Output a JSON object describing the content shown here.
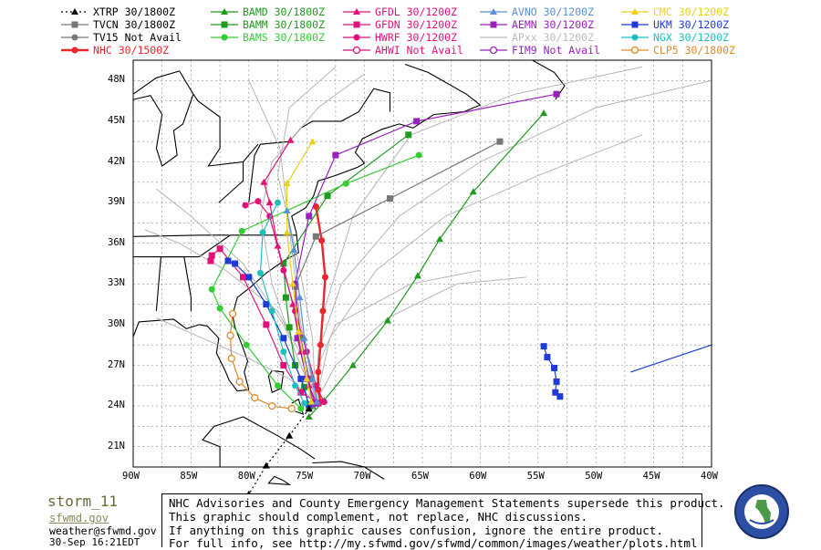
{
  "legend": [
    {
      "label": "XTRP 30/1800Z",
      "color": "#000000",
      "marker": "triangle",
      "dashed": true,
      "col": 0,
      "row": 0
    },
    {
      "label": "TVCN 30/1800Z",
      "color": "#777777",
      "marker": "square",
      "col": 0,
      "row": 1
    },
    {
      "label": "TV15 Not Avail",
      "color": "#777777",
      "marker": "circle",
      "col": 0,
      "row": 2
    },
    {
      "label": "NHC 30/1500Z",
      "color": "#e8262c",
      "marker": "circle",
      "col": 0,
      "row": 3
    },
    {
      "label": "BAMD 30/1800Z",
      "color": "#1e9a1e",
      "marker": "triangle",
      "col": 1,
      "row": 0
    },
    {
      "label": "BAMM 30/1800Z",
      "color": "#1e9a1e",
      "marker": "square",
      "col": 1,
      "row": 1
    },
    {
      "label": "BAMS 30/1800Z",
      "color": "#33cc33",
      "marker": "circle",
      "col": 1,
      "row": 2
    },
    {
      "label": "GFDL 30/1200Z",
      "color": "#e0127a",
      "marker": "triangle",
      "col": 2,
      "row": 0
    },
    {
      "label": "GFDN 30/1200Z",
      "color": "#e0127a",
      "marker": "square",
      "col": 2,
      "row": 1
    },
    {
      "label": "HWRF 30/1200Z",
      "color": "#e0127a",
      "marker": "circle",
      "col": 2,
      "row": 2
    },
    {
      "label": "AHWI  Not Avail",
      "color": "#e0127a",
      "marker": "hollow",
      "col": 2,
      "row": 3
    },
    {
      "label": "AVNO 30/1200Z",
      "color": "#5b8fd6",
      "marker": "triangle",
      "col": 3,
      "row": 0
    },
    {
      "label": "AEMN 30/1200Z",
      "color": "#9a1fbf",
      "marker": "square",
      "col": 3,
      "row": 1
    },
    {
      "label": "APxx 30/1200Z",
      "color": "#bbbbbb",
      "marker": "none",
      "col": 3,
      "row": 2
    },
    {
      "label": "FIM9  Not Avail",
      "color": "#9a1fbf",
      "marker": "hollow",
      "col": 3,
      "row": 3
    },
    {
      "label": "CMC  30/1200Z",
      "color": "#e6d21a",
      "marker": "triangle",
      "col": 4,
      "row": 0
    },
    {
      "label": "UKM  30/1200Z",
      "color": "#1f3bd6",
      "marker": "square",
      "col": 4,
      "row": 1
    },
    {
      "label": "NGX  30/1200Z",
      "color": "#1fbfbf",
      "marker": "circle",
      "col": 4,
      "row": 2
    },
    {
      "label": "CLP5 30/1800Z",
      "color": "#e08a2a",
      "marker": "hollow",
      "col": 4,
      "row": 3
    }
  ],
  "axes": {
    "lon_labels": [
      "90W",
      "85W",
      "80W",
      "75W",
      "70W",
      "65W",
      "60W",
      "55W",
      "50W",
      "45W",
      "40W"
    ],
    "lat_labels": [
      "48N",
      "45N",
      "42N",
      "39N",
      "36N",
      "33N",
      "30N",
      "27N",
      "24N",
      "21N"
    ]
  },
  "tracks": [
    {
      "name": "NHC",
      "color": "#e8262c",
      "marker": "circle",
      "points": [
        [
          -73.8,
          24.3
        ],
        [
          -74.0,
          25.2
        ],
        [
          -74.0,
          26.5
        ],
        [
          -73.8,
          28.5
        ],
        [
          -73.6,
          31.0
        ],
        [
          -73.4,
          33.5
        ],
        [
          -73.7,
          36.2
        ],
        [
          -74.2,
          38.7
        ]
      ]
    },
    {
      "name": "BAMD",
      "color": "#1e9a1e",
      "marker": "triangle",
      "points": [
        [
          -74.8,
          23.2
        ],
        [
          -73.5,
          24.4
        ],
        [
          -71.0,
          27.0
        ],
        [
          -68.0,
          30.3
        ],
        [
          -65.4,
          33.6
        ],
        [
          -63.5,
          36.3
        ],
        [
          -60.6,
          39.8
        ],
        [
          -54.5,
          45.6
        ]
      ]
    },
    {
      "name": "BAMM",
      "color": "#1e9a1e",
      "marker": "square",
      "points": [
        [
          -74.8,
          23.8
        ],
        [
          -75.2,
          25.4
        ],
        [
          -76.0,
          27.0
        ],
        [
          -76.5,
          29.8
        ],
        [
          -76.8,
          32.0
        ],
        [
          -77.0,
          34.5
        ],
        [
          -73.2,
          39.5
        ],
        [
          -66.2,
          44.0
        ]
      ]
    },
    {
      "name": "BAMS",
      "color": "#33cc33",
      "marker": "circle",
      "points": [
        [
          -75.5,
          23.8
        ],
        [
          -77.5,
          25.5
        ],
        [
          -80.2,
          28.5
        ],
        [
          -82.5,
          31.2
        ],
        [
          -83.2,
          32.6
        ],
        [
          -80.6,
          36.9
        ],
        [
          -71.6,
          40.4
        ],
        [
          -65.3,
          42.5
        ]
      ]
    },
    {
      "name": "TVCN",
      "color": "#777777",
      "marker": "square",
      "points": [
        [
          -74.5,
          24.0
        ],
        [
          -74.8,
          26.0
        ],
        [
          -75.5,
          29.0
        ],
        [
          -76.0,
          32.8
        ],
        [
          -74.2,
          36.5
        ],
        [
          -67.8,
          39.3
        ],
        [
          -58.3,
          43.5
        ]
      ]
    },
    {
      "name": "GFDL",
      "color": "#e0127a",
      "marker": "triangle",
      "points": [
        [
          -74.2,
          24.3
        ],
        [
          -74.8,
          25.5
        ],
        [
          -75.5,
          28.0
        ],
        [
          -76.2,
          31.5
        ],
        [
          -77.5,
          35.8
        ],
        [
          -78.2,
          39.0
        ],
        [
          -78.7,
          40.5
        ],
        [
          -76.4,
          43.6
        ]
      ]
    },
    {
      "name": "GFDN",
      "color": "#e0127a",
      "marker": "square",
      "points": [
        [
          -74.0,
          24.2
        ],
        [
          -75.5,
          25.0
        ],
        [
          -77.0,
          27.0
        ],
        [
          -78.5,
          30.0
        ],
        [
          -80.5,
          33.5
        ],
        [
          -82.5,
          35.6
        ],
        [
          -83.2,
          35.1
        ],
        [
          -83.3,
          34.7
        ]
      ]
    },
    {
      "name": "HWRF",
      "color": "#e0127a",
      "marker": "circle",
      "points": [
        [
          -73.5,
          24.3
        ],
        [
          -74.2,
          25.5
        ],
        [
          -75.0,
          28.0
        ],
        [
          -76.0,
          31.0
        ],
        [
          -77.0,
          34.0
        ],
        [
          -78.2,
          38.0
        ],
        [
          -79.2,
          39.1
        ],
        [
          -80.3,
          38.8
        ]
      ]
    },
    {
      "name": "AEMN",
      "color": "#9a1fbf",
      "marker": "square",
      "points": [
        [
          -74.3,
          24.2
        ],
        [
          -75.0,
          26.0
        ],
        [
          -75.8,
          29.0
        ],
        [
          -76.0,
          33.0
        ],
        [
          -74.8,
          38.0
        ],
        [
          -72.5,
          42.5
        ],
        [
          -65.5,
          45.0
        ],
        [
          -53.4,
          47.0
        ]
      ]
    },
    {
      "name": "UKM",
      "color": "#1f3bd6",
      "marker": "square",
      "points": [
        [
          -74.8,
          24.1
        ],
        [
          -75.5,
          26.0
        ],
        [
          -77.0,
          29.0
        ],
        [
          -78.5,
          31.5
        ],
        [
          -80.0,
          33.5
        ],
        [
          -81.2,
          34.5
        ],
        [
          -81.8,
          34.7
        ]
      ]
    },
    {
      "name": "UKM2",
      "color": "#1f3bd6",
      "marker": "square",
      "points": [
        [
          -54.5,
          28.4
        ],
        [
          -54.2,
          27.6
        ],
        [
          -53.6,
          26.8
        ],
        [
          -53.4,
          25.8
        ],
        [
          -53.5,
          25.0
        ],
        [
          -53.1,
          24.7
        ]
      ]
    },
    {
      "name": "NGX",
      "color": "#1fbfbf",
      "marker": "circle",
      "points": [
        [
          -75.2,
          24.2
        ],
        [
          -76.0,
          25.5
        ],
        [
          -77.0,
          28.0
        ],
        [
          -78.0,
          31.0
        ],
        [
          -79.0,
          33.8
        ],
        [
          -78.8,
          36.8
        ],
        [
          -77.5,
          39.0
        ]
      ]
    },
    {
      "name": "CMC",
      "color": "#e6d21a",
      "marker": "triangle",
      "points": [
        [
          -74.6,
          24.3
        ],
        [
          -75.0,
          26.0
        ],
        [
          -75.7,
          29.5
        ],
        [
          -76.2,
          33.0
        ],
        [
          -76.7,
          36.8
        ],
        [
          -76.7,
          40.4
        ],
        [
          -74.5,
          43.5
        ]
      ]
    },
    {
      "name": "AVNO",
      "color": "#5b8fd6",
      "marker": "triangle",
      "points": [
        [
          -74.1,
          24.3
        ],
        [
          -74.5,
          26.0
        ],
        [
          -75.2,
          29.0
        ],
        [
          -75.6,
          32.0
        ],
        [
          -76.1,
          35.5
        ],
        [
          -76.7,
          38.4
        ]
      ]
    },
    {
      "name": "CLP5",
      "color": "#e08a2a",
      "marker": "hollow",
      "points": [
        [
          -76.3,
          23.8
        ],
        [
          -78.0,
          24.0
        ],
        [
          -79.5,
          24.6
        ],
        [
          -80.8,
          25.8
        ],
        [
          -81.5,
          27.5
        ],
        [
          -81.6,
          29.2
        ],
        [
          -81.4,
          30.8
        ]
      ]
    },
    {
      "name": "XTRP",
      "color": "#000000",
      "marker": "triangle",
      "dashed": true,
      "points": [
        [
          -74.8,
          23.8
        ],
        [
          -76.5,
          21.8
        ],
        [
          -78.5,
          19.6
        ],
        [
          -80.0,
          17.5
        ]
      ]
    },
    {
      "name": "EXTRA",
      "color": "#1f3bd6",
      "marker": "none",
      "points": [
        [
          -47.0,
          26.5
        ],
        [
          -40.0,
          28.5
        ]
      ]
    }
  ],
  "notice": [
    "NHC Advisories and County Emergency Management Statements supersede this product.",
    "This graphic should complement, not replace, NHC discussions.",
    "If anything on this graphic causes confusion, ignore the entire product.",
    "For full info, see  http://my.sfwmd.gov/sfwmd/common/images/weather/plots.html"
  ],
  "brand": {
    "title": "storm_11",
    "subtitle": "sfwmd.gov",
    "email": "weather@sfwmd.gov",
    "timestamp": "30-Sep 16:21EDT",
    "seal_text": "SOUTH FLORIDA WATER MANAGEMENT DISTRICT"
  }
}
